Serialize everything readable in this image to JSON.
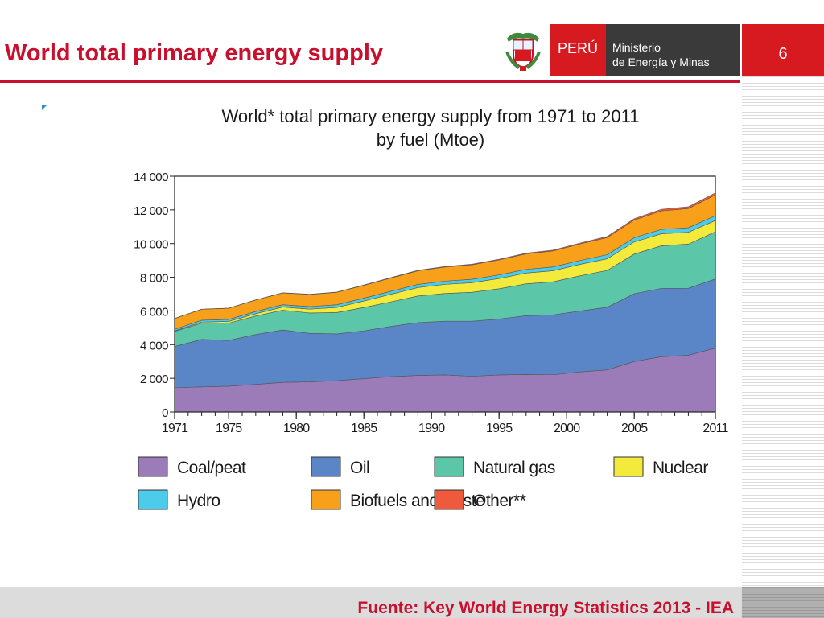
{
  "slide": {
    "title": "World total primary energy supply",
    "page_number": "6"
  },
  "logo": {
    "peru": "PERÚ",
    "ministry_line1": "Ministerio",
    "ministry_line2": "de Energía y Minas"
  },
  "footer": {
    "source": "Fuente: Key World Energy Statistics 2013 - IEA"
  },
  "colors": {
    "accent": "#c8102e",
    "logo_dark": "#3a3a3a"
  },
  "chart_data": {
    "type": "area",
    "stacked": true,
    "title_line1": "World* total primary energy supply from 1971 to 2011",
    "title_line2": "by fuel (Mtoe)",
    "ylim": [
      0,
      14000
    ],
    "xlim": [
      1971,
      2011
    ],
    "y_ticks": [
      0,
      2000,
      4000,
      6000,
      8000,
      10000,
      12000,
      14000
    ],
    "y_tick_labels": [
      "0",
      "2 000",
      "4 000",
      "6 000",
      "8 000",
      "10 000",
      "12 000",
      "14 000"
    ],
    "x_ticks": [
      1971,
      1975,
      1980,
      1985,
      1990,
      1995,
      2000,
      2005,
      2011
    ],
    "x_tick_labels": [
      "1971",
      "1975",
      "1980",
      "1985",
      "1990",
      "1995",
      "2000",
      "2005",
      "2011"
    ],
    "x": [
      1971,
      1973,
      1975,
      1977,
      1979,
      1981,
      1983,
      1985,
      1987,
      1989,
      1991,
      1993,
      1995,
      1997,
      1999,
      2001,
      2003,
      2005,
      2007,
      2009,
      2011
    ],
    "series": [
      {
        "name": "Coal/peat",
        "color": "#9b7bb8",
        "values": [
          1440,
          1490,
          1530,
          1640,
          1760,
          1790,
          1860,
          1980,
          2100,
          2170,
          2200,
          2120,
          2200,
          2230,
          2210,
          2380,
          2500,
          3000,
          3280,
          3370,
          3800
        ]
      },
      {
        "name": "Oil",
        "color": "#5a86c8",
        "values": [
          2450,
          2820,
          2720,
          2960,
          3110,
          2880,
          2780,
          2840,
          2980,
          3140,
          3190,
          3270,
          3320,
          3490,
          3560,
          3620,
          3720,
          4020,
          4060,
          3980,
          4100
        ]
      },
      {
        "name": "Natural gas",
        "color": "#5cc6a8",
        "values": [
          890,
          970,
          1030,
          1100,
          1180,
          1210,
          1270,
          1390,
          1460,
          1580,
          1650,
          1720,
          1800,
          1890,
          1960,
          2090,
          2190,
          2360,
          2530,
          2620,
          2800
        ]
      },
      {
        "name": "Nuclear",
        "color": "#f4ea3c",
        "values": [
          30,
          60,
          100,
          140,
          180,
          230,
          300,
          380,
          450,
          500,
          540,
          570,
          610,
          640,
          660,
          680,
          690,
          720,
          710,
          700,
          670
        ]
      },
      {
        "name": "Hydro",
        "color": "#4ccbea",
        "values": [
          100,
          110,
          120,
          130,
          140,
          150,
          160,
          170,
          180,
          185,
          190,
          200,
          210,
          220,
          225,
          230,
          240,
          250,
          260,
          270,
          290
        ]
      },
      {
        "name": "Biofuels and waste",
        "color": "#f9a01b",
        "values": [
          640,
          650,
          660,
          680,
          700,
          720,
          740,
          760,
          790,
          810,
          840,
          860,
          890,
          920,
          950,
          980,
          1020,
          1050,
          1100,
          1140,
          1230
        ]
      },
      {
        "name": "Other**",
        "color": "#ef5a3c",
        "values": [
          6,
          7,
          8,
          10,
          12,
          14,
          16,
          20,
          24,
          28,
          32,
          36,
          40,
          44,
          48,
          55,
          65,
          80,
          95,
          105,
          120
        ]
      }
    ],
    "legend": {
      "placement": "bottom",
      "rows": [
        [
          "Coal/peat",
          "Oil",
          "Natural gas",
          "Nuclear"
        ],
        [
          "Hydro",
          "Biofuels and waste",
          "Other**"
        ]
      ]
    }
  }
}
